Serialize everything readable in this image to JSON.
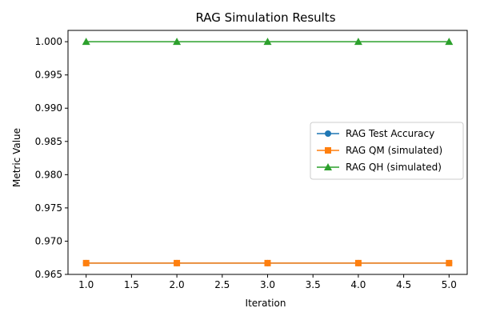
{
  "chart_data": {
    "type": "line",
    "title": "RAG Simulation Results",
    "xlabel": "Iteration",
    "ylabel": "Metric Value",
    "x": [
      1,
      2,
      3,
      4,
      5
    ],
    "xlim": [
      0.8,
      5.2
    ],
    "ylim": [
      0.965,
      1.0017
    ],
    "xticks": [
      1.0,
      1.5,
      2.0,
      2.5,
      3.0,
      3.5,
      4.0,
      4.5,
      5.0
    ],
    "xtick_labels": [
      "1.0",
      "1.5",
      "2.0",
      "2.5",
      "3.0",
      "3.5",
      "4.0",
      "4.5",
      "5.0"
    ],
    "yticks": [
      0.965,
      0.97,
      0.975,
      0.98,
      0.985,
      0.99,
      0.995,
      1.0
    ],
    "ytick_labels": [
      "0.965",
      "0.970",
      "0.975",
      "0.980",
      "0.985",
      "0.990",
      "0.995",
      "1.000"
    ],
    "grid": false,
    "legend_position": "center-right",
    "series": [
      {
        "name": "RAG Test Accuracy",
        "values": [
          0.9667,
          0.9667,
          0.9667,
          0.9667,
          0.9667
        ],
        "color": "#1f77b4",
        "marker": "circle"
      },
      {
        "name": "RAG QM (simulated)",
        "values": [
          0.9667,
          0.9667,
          0.9667,
          0.9667,
          0.9667
        ],
        "color": "#ff7f0e",
        "marker": "square"
      },
      {
        "name": "RAG QH (simulated)",
        "values": [
          1.0,
          1.0,
          1.0,
          1.0,
          1.0
        ],
        "color": "#2ca02c",
        "marker": "triangle"
      }
    ]
  }
}
